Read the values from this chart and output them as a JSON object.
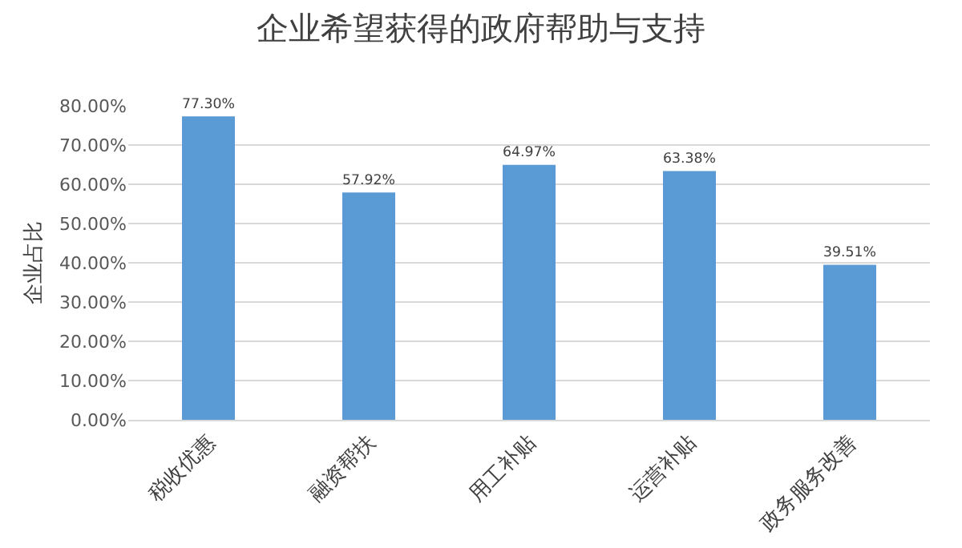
{
  "chart_data": {
    "type": "bar",
    "title": "企业希望获得的政府帮助与支持",
    "ylabel": "企业占比",
    "categories": [
      "税收优惠",
      "融资帮扶",
      "用工补贴",
      "运营补贴",
      "政务服务改善"
    ],
    "values": [
      77.3,
      57.92,
      64.97,
      63.38,
      39.51
    ],
    "value_labels": [
      "77.30%",
      "57.92%",
      "64.97%",
      "63.38%",
      "39.51%"
    ],
    "color": "#5b9bd5",
    "ylim": [
      0,
      80
    ],
    "yticks": [
      {
        "value": 0,
        "label": "0.00%"
      },
      {
        "value": 10,
        "label": "10.00%"
      },
      {
        "value": 20,
        "label": "20.00%"
      },
      {
        "value": 30,
        "label": "30.00%"
      },
      {
        "value": 40,
        "label": "40.00%"
      },
      {
        "value": 50,
        "label": "50.00%"
      },
      {
        "value": 60,
        "label": "60.00%"
      },
      {
        "value": 70,
        "label": "70.00%"
      },
      {
        "value": 80,
        "label": "80.00%"
      }
    ],
    "grid": "y",
    "legend": false
  }
}
